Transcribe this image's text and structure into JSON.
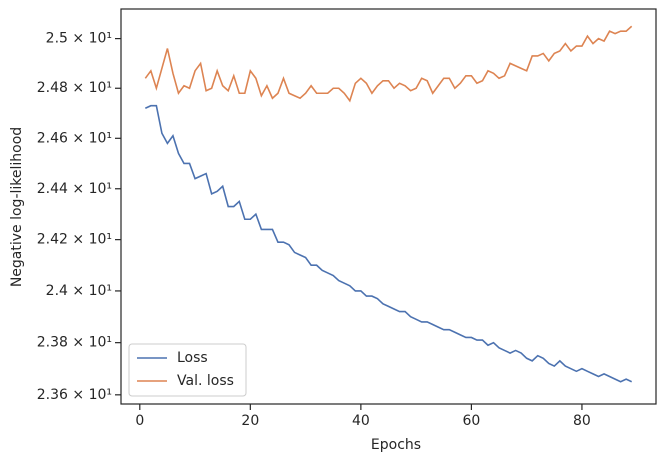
{
  "chart_data": {
    "type": "line",
    "xlabel": "Epochs",
    "ylabel": "Negative log-likelihood",
    "x": [
      1,
      2,
      3,
      4,
      5,
      6,
      7,
      8,
      9,
      10,
      11,
      12,
      13,
      14,
      15,
      16,
      17,
      18,
      19,
      20,
      21,
      22,
      23,
      24,
      25,
      26,
      27,
      28,
      29,
      30,
      31,
      32,
      33,
      34,
      35,
      36,
      37,
      38,
      39,
      40,
      41,
      42,
      43,
      44,
      45,
      46,
      47,
      48,
      49,
      50,
      51,
      52,
      53,
      54,
      55,
      56,
      57,
      58,
      59,
      60,
      61,
      62,
      63,
      64,
      65,
      66,
      67,
      68,
      69,
      70,
      71,
      72,
      73,
      74,
      75,
      76,
      77,
      78,
      79,
      80,
      81,
      82,
      83,
      84,
      85,
      86,
      87,
      88,
      89
    ],
    "series": [
      {
        "name": "Loss",
        "color": "#4c72b0",
        "values": [
          24.72,
          24.73,
          24.73,
          24.62,
          24.58,
          24.61,
          24.54,
          24.5,
          24.5,
          24.44,
          24.45,
          24.46,
          24.38,
          24.39,
          24.41,
          24.33,
          24.33,
          24.35,
          24.28,
          24.28,
          24.3,
          24.24,
          24.24,
          24.24,
          24.19,
          24.19,
          24.18,
          24.15,
          24.14,
          24.13,
          24.1,
          24.1,
          24.08,
          24.07,
          24.06,
          24.04,
          24.03,
          24.02,
          24.0,
          24.0,
          23.98,
          23.98,
          23.97,
          23.95,
          23.94,
          23.93,
          23.92,
          23.92,
          23.9,
          23.89,
          23.88,
          23.88,
          23.87,
          23.86,
          23.85,
          23.85,
          23.84,
          23.83,
          23.82,
          23.82,
          23.81,
          23.81,
          23.79,
          23.8,
          23.78,
          23.77,
          23.76,
          23.77,
          23.76,
          23.74,
          23.73,
          23.75,
          23.74,
          23.72,
          23.71,
          23.73,
          23.71,
          23.7,
          23.69,
          23.7,
          23.69,
          23.68,
          23.67,
          23.68,
          23.67,
          23.66,
          23.65,
          23.66,
          23.65
        ]
      },
      {
        "name": "Val. loss",
        "color": "#dd8452",
        "values": [
          24.84,
          24.87,
          24.8,
          24.88,
          24.96,
          24.86,
          24.78,
          24.81,
          24.8,
          24.87,
          24.9,
          24.79,
          24.8,
          24.87,
          24.81,
          24.79,
          24.85,
          24.78,
          24.78,
          24.87,
          24.84,
          24.77,
          24.81,
          24.76,
          24.78,
          24.84,
          24.78,
          24.77,
          24.76,
          24.78,
          24.81,
          24.78,
          24.78,
          24.78,
          24.8,
          24.8,
          24.78,
          24.75,
          24.82,
          24.84,
          24.82,
          24.78,
          24.81,
          24.83,
          24.83,
          24.8,
          24.82,
          24.81,
          24.79,
          24.8,
          24.84,
          24.83,
          24.78,
          24.81,
          24.84,
          24.84,
          24.8,
          24.82,
          24.85,
          24.85,
          24.82,
          24.83,
          24.87,
          24.86,
          24.84,
          24.85,
          24.9,
          24.89,
          24.88,
          24.87,
          24.93,
          24.93,
          24.94,
          24.91,
          24.94,
          24.95,
          24.98,
          24.95,
          24.97,
          24.97,
          25.01,
          24.98,
          25.0,
          24.99,
          25.03,
          25.02,
          25.03,
          25.03,
          25.05
        ]
      }
    ],
    "xlim": [
      -3.4,
      93.4
    ],
    "xticks": [
      0,
      20,
      40,
      60,
      80
    ],
    "ylim": [
      23.565,
      25.12
    ],
    "log_y": true,
    "yticks": [
      {
        "value": 23.6,
        "label": "2.36 × 10¹"
      },
      {
        "value": 23.8,
        "label": "2.38 × 10¹"
      },
      {
        "value": 24.0,
        "label": "2.4 × 10¹"
      },
      {
        "value": 24.2,
        "label": "2.42 × 10¹"
      },
      {
        "value": 24.4,
        "label": "2.44 × 10¹"
      },
      {
        "value": 24.6,
        "label": "2.46 × 10¹"
      },
      {
        "value": 24.8,
        "label": "2.48 × 10¹"
      },
      {
        "value": 25.0,
        "label": "2.5 × 10¹"
      }
    ],
    "legend": "lower left"
  }
}
